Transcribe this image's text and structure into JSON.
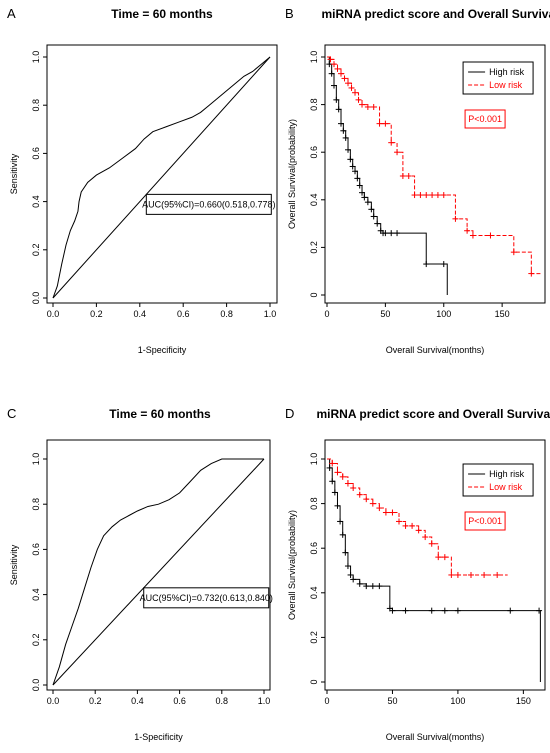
{
  "chart_data": [
    {
      "panel": "A",
      "type": "line",
      "title": "Time = 60 months",
      "xlabel": "1-Specificity",
      "ylabel": "Sensitivity",
      "xlim": [
        0,
        1
      ],
      "ylim": [
        0,
        1
      ],
      "xticks": [
        "0.0",
        "0.2",
        "0.4",
        "0.6",
        "0.8",
        "1.0"
      ],
      "yticks": [
        "0.0",
        "0.2",
        "0.4",
        "0.6",
        "0.8",
        "1.0"
      ],
      "annotation": "AUC(95%CI)=0.660(0.518,0.778)",
      "grid": false,
      "series": [
        {
          "color": "#000000",
          "x": [
            0,
            0.02,
            0.04,
            0.06,
            0.08,
            0.1,
            0.115,
            0.12,
            0.13,
            0.16,
            0.2,
            0.26,
            0.32,
            0.38,
            0.42,
            0.46,
            0.52,
            0.58,
            0.64,
            0.68,
            0.72,
            0.76,
            0.8,
            0.84,
            0.88,
            0.92,
            0.96,
            1.0
          ],
          "y": [
            0,
            0.05,
            0.14,
            0.22,
            0.28,
            0.32,
            0.36,
            0.4,
            0.44,
            0.48,
            0.51,
            0.54,
            0.58,
            0.62,
            0.66,
            0.69,
            0.71,
            0.73,
            0.75,
            0.77,
            0.8,
            0.83,
            0.86,
            0.89,
            0.92,
            0.94,
            0.97,
            1.0
          ]
        },
        {
          "color": "#000000",
          "x": [
            0,
            1
          ],
          "y": [
            0,
            1
          ]
        }
      ]
    },
    {
      "panel": "B",
      "type": "line",
      "title": "miRNA predict score and Overall Survival",
      "xlabel": "Overall Survival(months)",
      "ylabel": "Overall Survival(probability)",
      "xlim": [
        0,
        185
      ],
      "ylim": [
        0,
        1
      ],
      "xticks": [
        "0",
        "50",
        "100",
        "150"
      ],
      "yticks": [
        "0",
        "0.2",
        "0.4",
        "0.6",
        "0.8",
        "1.0"
      ],
      "legend": "top-right",
      "pvalue": "P<0.001",
      "series": [
        {
          "name": "High risk",
          "color": "#000000",
          "dash": false,
          "x": [
            0,
            2,
            4,
            6,
            8,
            10,
            12,
            14,
            16,
            18,
            20,
            22,
            24,
            26,
            28,
            30,
            32,
            35,
            38,
            40,
            43,
            46,
            48,
            50,
            55,
            60,
            85,
            100,
            103
          ],
          "y": [
            1.0,
            0.97,
            0.93,
            0.88,
            0.82,
            0.78,
            0.72,
            0.69,
            0.66,
            0.61,
            0.57,
            0.54,
            0.52,
            0.49,
            0.46,
            0.43,
            0.41,
            0.39,
            0.36,
            0.33,
            0.3,
            0.27,
            0.26,
            0.26,
            0.26,
            0.26,
            0.13,
            0.13,
            0
          ]
        },
        {
          "name": "Low risk",
          "color": "#ff0000",
          "dash": true,
          "x": [
            0,
            3,
            6,
            9,
            12,
            15,
            18,
            21,
            24,
            27,
            30,
            35,
            40,
            45,
            50,
            55,
            60,
            65,
            70,
            75,
            80,
            85,
            90,
            95,
            100,
            110,
            120,
            125,
            140,
            160,
            175,
            183
          ],
          "y": [
            1.0,
            0.99,
            0.97,
            0.95,
            0.93,
            0.91,
            0.89,
            0.87,
            0.85,
            0.82,
            0.8,
            0.79,
            0.79,
            0.72,
            0.72,
            0.64,
            0.6,
            0.5,
            0.5,
            0.42,
            0.42,
            0.42,
            0.42,
            0.42,
            0.42,
            0.32,
            0.27,
            0.25,
            0.25,
            0.18,
            0.09,
            0.09
          ]
        }
      ]
    },
    {
      "panel": "C",
      "type": "line",
      "title": "Time = 60 months",
      "xlabel": "1-Specificity",
      "ylabel": "Sensitivity",
      "xlim": [
        0,
        1
      ],
      "ylim": [
        0,
        1
      ],
      "xticks": [
        "0.0",
        "0.2",
        "0.4",
        "0.6",
        "0.8",
        "1.0"
      ],
      "yticks": [
        "0.0",
        "0.2",
        "0.4",
        "0.6",
        "0.8",
        "1.0"
      ],
      "annotation": "AUC(95%CI)=0.732(0.613,0.840)",
      "grid": false,
      "series": [
        {
          "color": "#000000",
          "x": [
            0,
            0.03,
            0.06,
            0.09,
            0.12,
            0.15,
            0.18,
            0.21,
            0.24,
            0.28,
            0.32,
            0.36,
            0.4,
            0.45,
            0.5,
            0.55,
            0.6,
            0.65,
            0.7,
            0.75,
            0.8,
            0.85,
            0.9,
            0.95,
            1.0
          ],
          "y": [
            0,
            0.08,
            0.18,
            0.26,
            0.34,
            0.43,
            0.52,
            0.6,
            0.66,
            0.7,
            0.73,
            0.75,
            0.77,
            0.79,
            0.8,
            0.82,
            0.85,
            0.9,
            0.95,
            0.98,
            1.0,
            1.0,
            1.0,
            1.0,
            1.0
          ]
        },
        {
          "color": "#000000",
          "x": [
            0,
            1
          ],
          "y": [
            0,
            1
          ]
        }
      ]
    },
    {
      "panel": "D",
      "type": "line",
      "title": "miRNA predict score and Overall Survival",
      "xlabel": "Overall Survival(months)",
      "ylabel": "Overall Survival(probability)",
      "xlim": [
        0,
        165
      ],
      "ylim": [
        0,
        1
      ],
      "xticks": [
        "0",
        "50",
        "100",
        "150"
      ],
      "yticks": [
        "0",
        "0.2",
        "0.4",
        "0.6",
        "0.8",
        "1.0"
      ],
      "legend": "top-right",
      "pvalue": "P<0.001",
      "series": [
        {
          "name": "High risk",
          "color": "#000000",
          "dash": false,
          "x": [
            0,
            2,
            4,
            6,
            8,
            10,
            12,
            14,
            16,
            18,
            20,
            25,
            30,
            35,
            40,
            48,
            50,
            60,
            80,
            90,
            100,
            140,
            162,
            163
          ],
          "y": [
            1.0,
            0.96,
            0.9,
            0.85,
            0.79,
            0.72,
            0.66,
            0.58,
            0.52,
            0.48,
            0.46,
            0.44,
            0.43,
            0.43,
            0.43,
            0.33,
            0.32,
            0.32,
            0.32,
            0.32,
            0.32,
            0.32,
            0.32,
            0
          ]
        },
        {
          "name": "Low risk",
          "color": "#ff0000",
          "dash": true,
          "x": [
            0,
            4,
            8,
            12,
            16,
            20,
            25,
            30,
            35,
            40,
            45,
            50,
            55,
            60,
            65,
            70,
            75,
            80,
            85,
            90,
            95,
            100,
            110,
            120,
            130,
            138
          ],
          "y": [
            1.0,
            0.98,
            0.94,
            0.92,
            0.89,
            0.87,
            0.84,
            0.82,
            0.8,
            0.78,
            0.76,
            0.76,
            0.72,
            0.7,
            0.7,
            0.68,
            0.65,
            0.62,
            0.56,
            0.56,
            0.48,
            0.48,
            0.48,
            0.48,
            0.48,
            0.48
          ]
        }
      ]
    }
  ]
}
